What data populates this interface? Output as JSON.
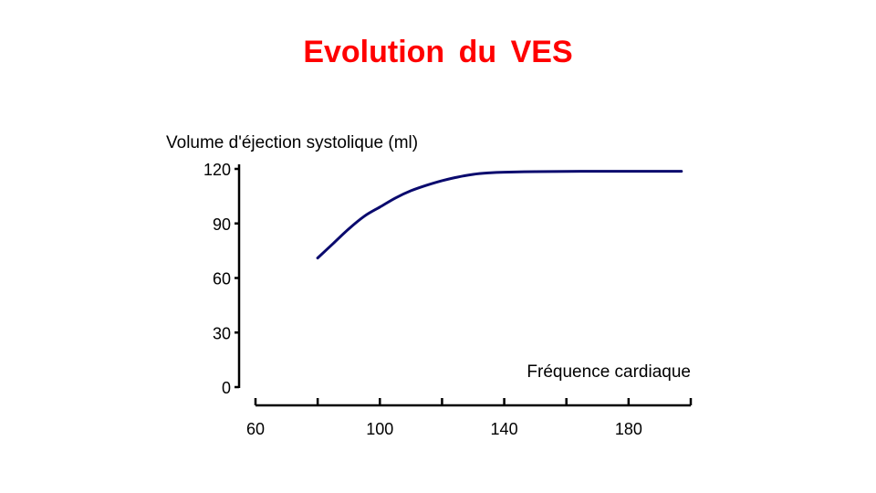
{
  "page": {
    "title": "Evolution du VES",
    "title_color": "#ff0000"
  },
  "chart_data": {
    "type": "line",
    "ylabel": "Volume d'éjection systolique (ml)",
    "xlabel": "Fréquence cardiaque",
    "xlim": [
      60,
      200
    ],
    "ylim": [
      0,
      120
    ],
    "x_ticks": [
      60,
      100,
      140,
      180
    ],
    "y_ticks": [
      0,
      30,
      60,
      90,
      120
    ],
    "grid": false,
    "line_color": "#0a0a6e",
    "series": [
      {
        "x": [
          80,
          85,
          90,
          95,
          100,
          105,
          110,
          115,
          120,
          125,
          130,
          135,
          140,
          150,
          160,
          170,
          180,
          190,
          197
        ],
        "values": [
          71,
          79,
          87,
          94,
          99,
          104,
          108,
          111,
          113.5,
          115.5,
          117,
          117.8,
          118.2,
          118.5,
          118.6,
          118.7,
          118.7,
          118.7,
          118.7
        ]
      }
    ]
  }
}
